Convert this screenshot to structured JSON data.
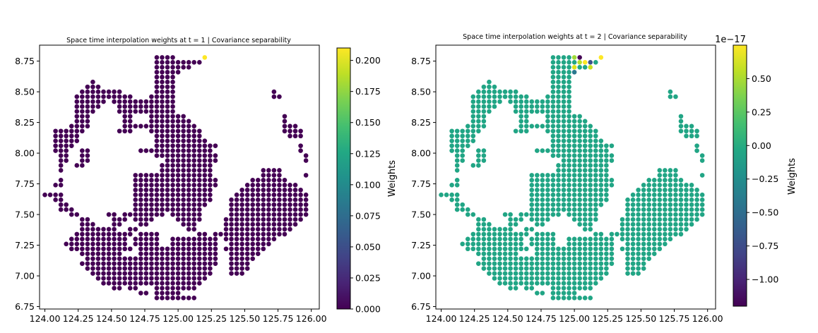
{
  "chart_data": [
    {
      "type": "scatter",
      "title": "Space time interpolation weights at $t$ = 1 | Covariance separability",
      "title_display": "Space time interpolation weights at t = 1 | Covariance separability",
      "t_value": "1",
      "xlim": [
        123.96,
        126.06
      ],
      "ylim": [
        6.73,
        8.88
      ],
      "x_ticks": [
        124.0,
        124.25,
        124.5,
        124.75,
        125.0,
        125.25,
        125.5,
        125.75,
        126.0
      ],
      "x_tick_labels": [
        "124.00",
        "124.25",
        "124.50",
        "124.75",
        "125.00",
        "125.25",
        "125.50",
        "125.75",
        "126.00"
      ],
      "y_ticks": [
        6.75,
        7.0,
        7.25,
        7.5,
        7.75,
        8.0,
        8.25,
        8.5,
        8.75
      ],
      "y_tick_labels": [
        "6.75",
        "7.00",
        "7.25",
        "7.50",
        "7.75",
        "8.00",
        "8.25",
        "8.50",
        "8.75"
      ],
      "grid": false,
      "colorbar": {
        "label": "Weights",
        "range": [
          0.0,
          0.21
        ],
        "ticks": [
          0.0,
          0.025,
          0.05,
          0.075,
          0.1,
          0.125,
          0.15,
          0.175,
          0.2
        ],
        "tick_labels": [
          "0.000",
          "0.025",
          "0.050",
          "0.075",
          "0.100",
          "0.125",
          "0.150",
          "0.175",
          "0.200"
        ],
        "offset_text": ""
      },
      "base_color": "#440154",
      "points_note_weight_default": 0.0,
      "highlight_points": [
        {
          "x": 125.2,
          "y": 8.78,
          "weight": 0.21,
          "color": "#fde725"
        }
      ]
    },
    {
      "type": "scatter",
      "title": "Space time interpolation weights at $t$ = 2 | Covariance separability",
      "title_display": "Space time interpolation weights at t = 2 | Covariance separability",
      "t_value": "2",
      "xlim": [
        123.96,
        126.06
      ],
      "ylim": [
        6.73,
        8.88
      ],
      "x_ticks": [
        124.0,
        124.25,
        124.5,
        124.75,
        125.0,
        125.25,
        125.5,
        125.75,
        126.0
      ],
      "x_tick_labels": [
        "124.00",
        "124.25",
        "124.50",
        "124.75",
        "125.00",
        "125.25",
        "125.50",
        "125.75",
        "126.00"
      ],
      "y_ticks": [
        6.75,
        7.0,
        7.25,
        7.5,
        7.75,
        8.0,
        8.25,
        8.5,
        8.75
      ],
      "y_tick_labels": [
        "6.75",
        "7.00",
        "7.25",
        "7.50",
        "7.75",
        "8.00",
        "8.25",
        "8.50",
        "8.75"
      ],
      "grid": false,
      "colorbar": {
        "label": "Weights",
        "range": [
          -1.2,
          0.75
        ],
        "ticks": [
          -1.0,
          -0.75,
          -0.5,
          -0.25,
          0.0,
          0.25,
          0.5
        ],
        "tick_labels": [
          "−1.00",
          "−0.75",
          "−0.50",
          "−0.25",
          "0.00",
          "0.25",
          "0.50"
        ],
        "offset_text": "1e−17"
      },
      "base_color": "#21a585",
      "highlight_points": [
        {
          "x": 125.0,
          "y": 8.78,
          "weight": 0.3,
          "color": "#a0da39"
        },
        {
          "x": 125.04,
          "y": 8.78,
          "weight": -1.2,
          "color": "#440154"
        },
        {
          "x": 125.2,
          "y": 8.78,
          "weight": 0.75,
          "color": "#fde725"
        },
        {
          "x": 125.04,
          "y": 8.74,
          "weight": 0.35,
          "color": "#b5de2b"
        },
        {
          "x": 125.08,
          "y": 8.74,
          "weight": 0.75,
          "color": "#fde725"
        },
        {
          "x": 125.12,
          "y": 8.74,
          "weight": -0.9,
          "color": "#3b528b"
        },
        {
          "x": 125.16,
          "y": 8.74,
          "weight": 0.0,
          "color": "#21a585"
        },
        {
          "x": 125.0,
          "y": 8.7,
          "weight": 0.6,
          "color": "#dde318"
        },
        {
          "x": 125.12,
          "y": 8.7,
          "weight": 0.5,
          "color": "#c8e020"
        },
        {
          "x": 125.0,
          "y": 8.66,
          "weight": -0.6,
          "color": "#2a788e"
        }
      ]
    }
  ]
}
